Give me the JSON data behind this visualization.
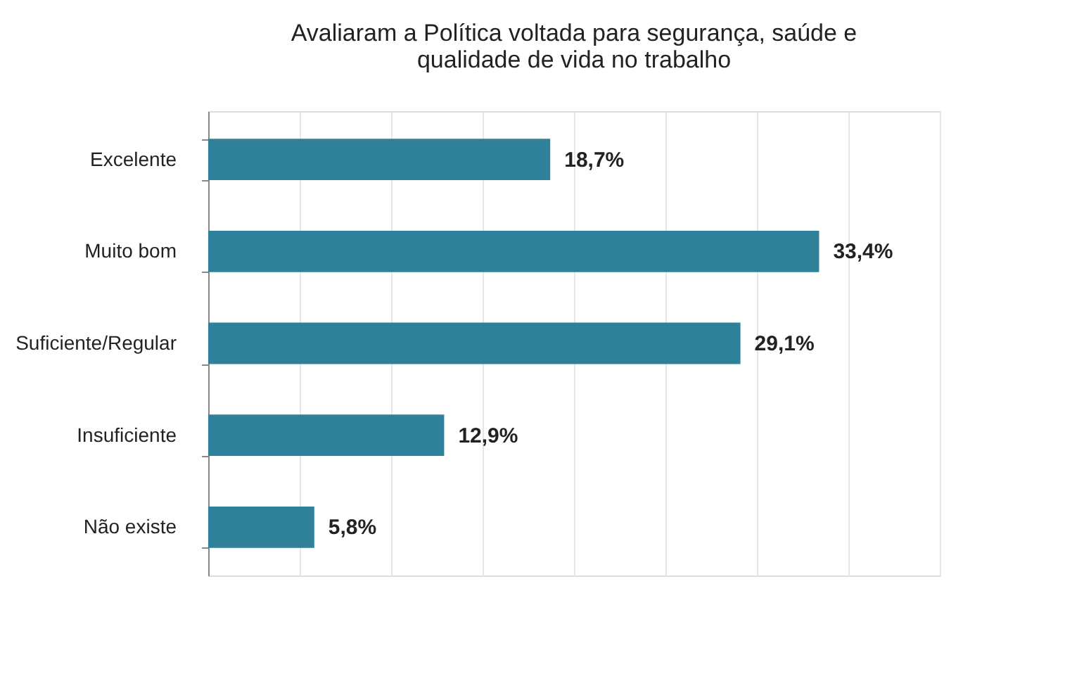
{
  "chart_data": {
    "type": "bar",
    "orientation": "horizontal",
    "title": "Avaliaram a Política voltada para segurança, saúde e qualidade de vida no trabalho",
    "categories": [
      "Excelente",
      "Muito bom",
      "Suficiente/Regular",
      "Insuficiente",
      "Não existe"
    ],
    "values": [
      18.7,
      33.4,
      29.1,
      12.9,
      5.8
    ],
    "value_labels": [
      "18,7%",
      "33,4%",
      "29,1%",
      "12,9%",
      "5,8%"
    ],
    "color": "#2e8199",
    "xlim": [
      0,
      40
    ],
    "xticks": [
      {
        "value": 0,
        "label": null
      },
      {
        "value": 5,
        "label": null
      },
      {
        "value": 10,
        "label": null
      },
      {
        "value": 15,
        "label": null
      },
      {
        "value": 20,
        "label": null
      },
      {
        "value": 25,
        "label": null
      },
      {
        "value": 30,
        "label": null
      },
      {
        "value": 35,
        "label": null
      },
      {
        "value": 40,
        "label": null
      }
    ],
    "grid": "x",
    "tick_labels": "y"
  }
}
